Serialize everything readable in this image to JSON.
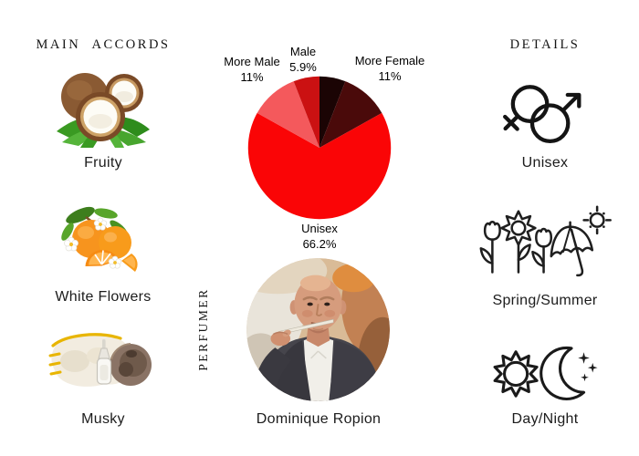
{
  "accords": {
    "heading": "MAIN ACCORDS",
    "items": [
      {
        "label": "Fruity",
        "image": "coconut"
      },
      {
        "label": "White Flowers",
        "image": "orange-blossom"
      },
      {
        "label": "Musky",
        "image": "musk-pod-fur-and-dropper"
      }
    ]
  },
  "details": {
    "heading": "DETAILS",
    "items": [
      {
        "label": "Unisex",
        "icon": "male-female-gender-symbols"
      },
      {
        "label": "Spring/Summer",
        "icon": "flowers-umbrella-sun"
      },
      {
        "label": "Day/Night",
        "icon": "sun-and-crescent-moon"
      }
    ]
  },
  "perfumer": {
    "heading": "PERFUMER",
    "name": "Dominique Ropion"
  },
  "chart_data": {
    "type": "pie",
    "direction": "clockwise",
    "start_angle_deg": 0,
    "unit": "%",
    "legend_position": "around",
    "slices": [
      {
        "label": "",
        "value": 5.9,
        "display_pct": "",
        "color": "#1b0404"
      },
      {
        "label": "More Female",
        "value": 11,
        "display_pct": "11%",
        "color": "#4a0a0a"
      },
      {
        "label": "Unisex",
        "value": 66.2,
        "display_pct": "66.2%",
        "color": "#fa0506"
      },
      {
        "label": "More Male",
        "value": 11,
        "display_pct": "11%",
        "color": "#f4595c"
      },
      {
        "label": "Male",
        "value": 5.9,
        "display_pct": "5.9%",
        "color": "#cb1112"
      }
    ]
  }
}
